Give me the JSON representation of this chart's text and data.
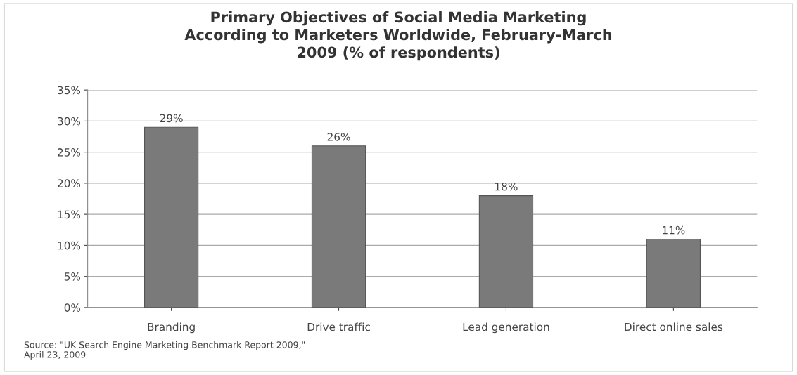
{
  "chart_data": {
    "type": "bar",
    "title": "Primary Objectives of Social Media Marketing\nAccording to Marketers Worldwide, February-March\n2009 (% of respondents)",
    "categories": [
      "Branding",
      "Drive traffic",
      "Lead generation",
      "Direct online sales"
    ],
    "values": [
      29,
      26,
      18,
      11
    ],
    "value_labels": [
      "29%",
      "26%",
      "18%",
      "11%"
    ],
    "color": "#7a7a7a",
    "ylim": [
      0,
      35
    ],
    "yticks": [
      {
        "value": 0,
        "label": "0%"
      },
      {
        "value": 5,
        "label": "5%"
      },
      {
        "value": 10,
        "label": "10%"
      },
      {
        "value": 15,
        "label": "15%"
      },
      {
        "value": 20,
        "label": "20%"
      },
      {
        "value": 25,
        "label": "25%"
      },
      {
        "value": 30,
        "label": "30%"
      },
      {
        "value": 35,
        "label": "35%"
      }
    ],
    "grid": "y",
    "legend": false,
    "annotations": [
      "Source: \"UK Search Engine Marketing Benchmark Report 2009,\"\nApril 23, 2009"
    ]
  }
}
